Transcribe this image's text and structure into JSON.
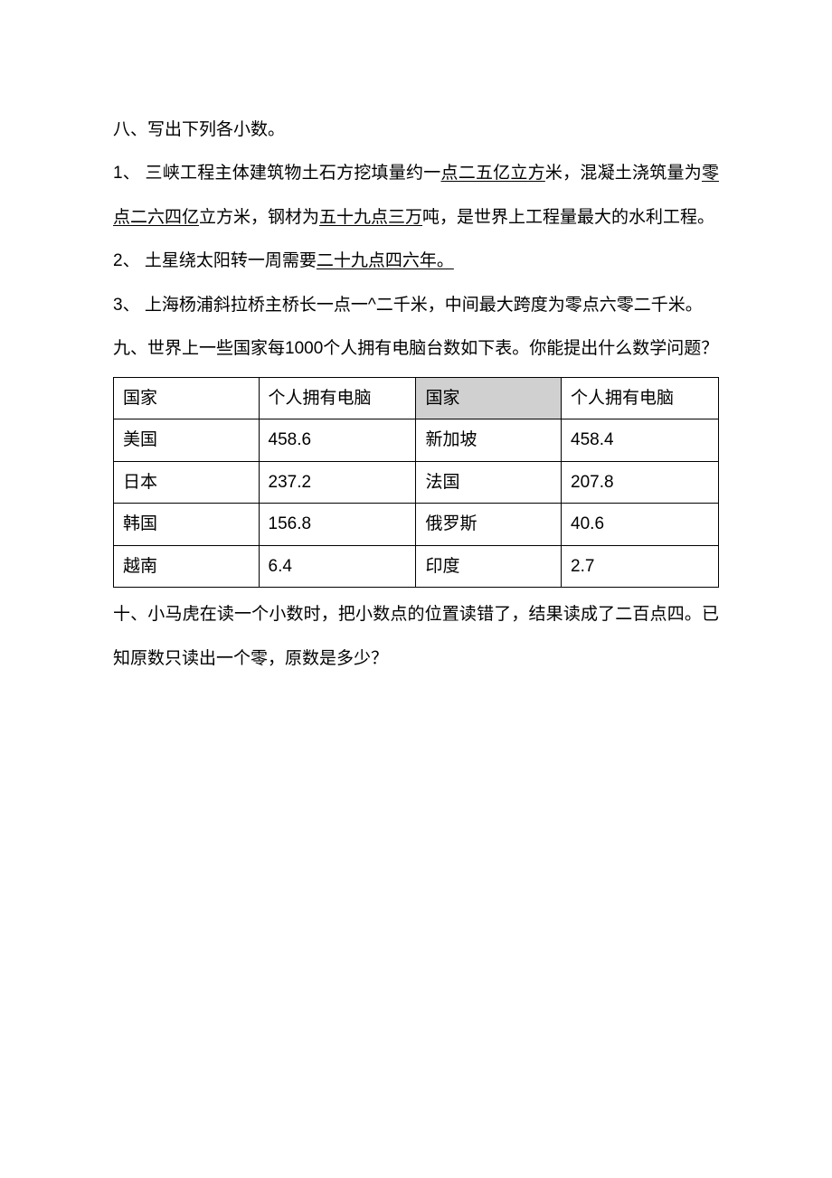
{
  "section8": {
    "heading": "八、写出下列各小数。",
    "item1": {
      "pre": "1、 三峡工程主体建筑物土石方挖填量约一",
      "u1": "点二五亿立方",
      "mid1": "米，混凝土浇筑量为",
      "u2": "零点二六四亿",
      "mid2": "立方米，钢材为",
      "u3": "五十九点三万",
      "post": "吨，是世界上工程量最大的水利工程。"
    },
    "item2": {
      "pre": "2、 土星绕太阳转一周需要",
      "u1": "二十九点四六年。"
    },
    "item3": "3、 上海杨浦斜拉桥主桥长一点一^二千米，中间最大跨度为零点六零二千米。"
  },
  "section9": {
    "heading": "九、世界上一些国家每1000个人拥有电脑台数如下表。你能提出什么数学问题？",
    "table": {
      "headers": {
        "col1": "国家",
        "col2": "个人拥有电脑",
        "col3": "国家",
        "col4": "个人拥有电脑"
      },
      "rows": [
        {
          "c1": "美国",
          "c2": "458.6",
          "c3": "新加坡",
          "c4": "458.4"
        },
        {
          "c1": "日本",
          "c2": "237.2",
          "c3": "法国",
          "c4": "207.8"
        },
        {
          "c1": "韩国",
          "c2": "156.8",
          "c3": "俄罗斯",
          "c4": "40.6"
        },
        {
          "c1": "越南",
          "c2": "6.4",
          "c3": "印度",
          "c4": "2.7"
        }
      ],
      "header_shaded_bg": "#d0d0d0",
      "border_color": "#000000"
    }
  },
  "section10": {
    "heading": "十、小马虎在读一个小数时，把小数点的位置读错了，结果读成了二百点四。已知原数只读出一个零，原数是多少？"
  }
}
